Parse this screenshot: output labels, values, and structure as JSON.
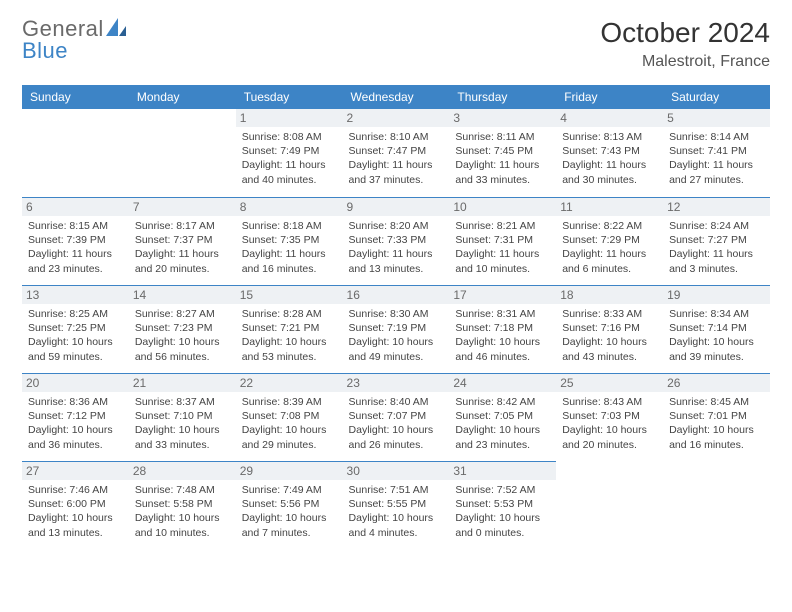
{
  "brand": {
    "part1": "General",
    "part2": "Blue"
  },
  "title": "October 2024",
  "location": "Malestroit, France",
  "colors": {
    "header_bg": "#3d84c6",
    "header_text": "#ffffff",
    "daynum_bg": "#eef1f4",
    "daynum_text": "#6a6a6a",
    "row_border": "#3d84c6",
    "body_text": "#444444",
    "logo_gray": "#6a6a6a",
    "logo_blue": "#3d84c6"
  },
  "day_headers": [
    "Sunday",
    "Monday",
    "Tuesday",
    "Wednesday",
    "Thursday",
    "Friday",
    "Saturday"
  ],
  "weeks": [
    [
      {
        "empty": true
      },
      {
        "empty": true
      },
      {
        "num": "1",
        "sunrise": "Sunrise: 8:08 AM",
        "sunset": "Sunset: 7:49 PM",
        "daylight": "Daylight: 11 hours and 40 minutes."
      },
      {
        "num": "2",
        "sunrise": "Sunrise: 8:10 AM",
        "sunset": "Sunset: 7:47 PM",
        "daylight": "Daylight: 11 hours and 37 minutes."
      },
      {
        "num": "3",
        "sunrise": "Sunrise: 8:11 AM",
        "sunset": "Sunset: 7:45 PM",
        "daylight": "Daylight: 11 hours and 33 minutes."
      },
      {
        "num": "4",
        "sunrise": "Sunrise: 8:13 AM",
        "sunset": "Sunset: 7:43 PM",
        "daylight": "Daylight: 11 hours and 30 minutes."
      },
      {
        "num": "5",
        "sunrise": "Sunrise: 8:14 AM",
        "sunset": "Sunset: 7:41 PM",
        "daylight": "Daylight: 11 hours and 27 minutes."
      }
    ],
    [
      {
        "num": "6",
        "sunrise": "Sunrise: 8:15 AM",
        "sunset": "Sunset: 7:39 PM",
        "daylight": "Daylight: 11 hours and 23 minutes."
      },
      {
        "num": "7",
        "sunrise": "Sunrise: 8:17 AM",
        "sunset": "Sunset: 7:37 PM",
        "daylight": "Daylight: 11 hours and 20 minutes."
      },
      {
        "num": "8",
        "sunrise": "Sunrise: 8:18 AM",
        "sunset": "Sunset: 7:35 PM",
        "daylight": "Daylight: 11 hours and 16 minutes."
      },
      {
        "num": "9",
        "sunrise": "Sunrise: 8:20 AM",
        "sunset": "Sunset: 7:33 PM",
        "daylight": "Daylight: 11 hours and 13 minutes."
      },
      {
        "num": "10",
        "sunrise": "Sunrise: 8:21 AM",
        "sunset": "Sunset: 7:31 PM",
        "daylight": "Daylight: 11 hours and 10 minutes."
      },
      {
        "num": "11",
        "sunrise": "Sunrise: 8:22 AM",
        "sunset": "Sunset: 7:29 PM",
        "daylight": "Daylight: 11 hours and 6 minutes."
      },
      {
        "num": "12",
        "sunrise": "Sunrise: 8:24 AM",
        "sunset": "Sunset: 7:27 PM",
        "daylight": "Daylight: 11 hours and 3 minutes."
      }
    ],
    [
      {
        "num": "13",
        "sunrise": "Sunrise: 8:25 AM",
        "sunset": "Sunset: 7:25 PM",
        "daylight": "Daylight: 10 hours and 59 minutes."
      },
      {
        "num": "14",
        "sunrise": "Sunrise: 8:27 AM",
        "sunset": "Sunset: 7:23 PM",
        "daylight": "Daylight: 10 hours and 56 minutes."
      },
      {
        "num": "15",
        "sunrise": "Sunrise: 8:28 AM",
        "sunset": "Sunset: 7:21 PM",
        "daylight": "Daylight: 10 hours and 53 minutes."
      },
      {
        "num": "16",
        "sunrise": "Sunrise: 8:30 AM",
        "sunset": "Sunset: 7:19 PM",
        "daylight": "Daylight: 10 hours and 49 minutes."
      },
      {
        "num": "17",
        "sunrise": "Sunrise: 8:31 AM",
        "sunset": "Sunset: 7:18 PM",
        "daylight": "Daylight: 10 hours and 46 minutes."
      },
      {
        "num": "18",
        "sunrise": "Sunrise: 8:33 AM",
        "sunset": "Sunset: 7:16 PM",
        "daylight": "Daylight: 10 hours and 43 minutes."
      },
      {
        "num": "19",
        "sunrise": "Sunrise: 8:34 AM",
        "sunset": "Sunset: 7:14 PM",
        "daylight": "Daylight: 10 hours and 39 minutes."
      }
    ],
    [
      {
        "num": "20",
        "sunrise": "Sunrise: 8:36 AM",
        "sunset": "Sunset: 7:12 PM",
        "daylight": "Daylight: 10 hours and 36 minutes."
      },
      {
        "num": "21",
        "sunrise": "Sunrise: 8:37 AM",
        "sunset": "Sunset: 7:10 PM",
        "daylight": "Daylight: 10 hours and 33 minutes."
      },
      {
        "num": "22",
        "sunrise": "Sunrise: 8:39 AM",
        "sunset": "Sunset: 7:08 PM",
        "daylight": "Daylight: 10 hours and 29 minutes."
      },
      {
        "num": "23",
        "sunrise": "Sunrise: 8:40 AM",
        "sunset": "Sunset: 7:07 PM",
        "daylight": "Daylight: 10 hours and 26 minutes."
      },
      {
        "num": "24",
        "sunrise": "Sunrise: 8:42 AM",
        "sunset": "Sunset: 7:05 PM",
        "daylight": "Daylight: 10 hours and 23 minutes."
      },
      {
        "num": "25",
        "sunrise": "Sunrise: 8:43 AM",
        "sunset": "Sunset: 7:03 PM",
        "daylight": "Daylight: 10 hours and 20 minutes."
      },
      {
        "num": "26",
        "sunrise": "Sunrise: 8:45 AM",
        "sunset": "Sunset: 7:01 PM",
        "daylight": "Daylight: 10 hours and 16 minutes."
      }
    ],
    [
      {
        "num": "27",
        "sunrise": "Sunrise: 7:46 AM",
        "sunset": "Sunset: 6:00 PM",
        "daylight": "Daylight: 10 hours and 13 minutes."
      },
      {
        "num": "28",
        "sunrise": "Sunrise: 7:48 AM",
        "sunset": "Sunset: 5:58 PM",
        "daylight": "Daylight: 10 hours and 10 minutes."
      },
      {
        "num": "29",
        "sunrise": "Sunrise: 7:49 AM",
        "sunset": "Sunset: 5:56 PM",
        "daylight": "Daylight: 10 hours and 7 minutes."
      },
      {
        "num": "30",
        "sunrise": "Sunrise: 7:51 AM",
        "sunset": "Sunset: 5:55 PM",
        "daylight": "Daylight: 10 hours and 4 minutes."
      },
      {
        "num": "31",
        "sunrise": "Sunrise: 7:52 AM",
        "sunset": "Sunset: 5:53 PM",
        "daylight": "Daylight: 10 hours and 0 minutes."
      },
      {
        "empty": true
      },
      {
        "empty": true
      }
    ]
  ]
}
